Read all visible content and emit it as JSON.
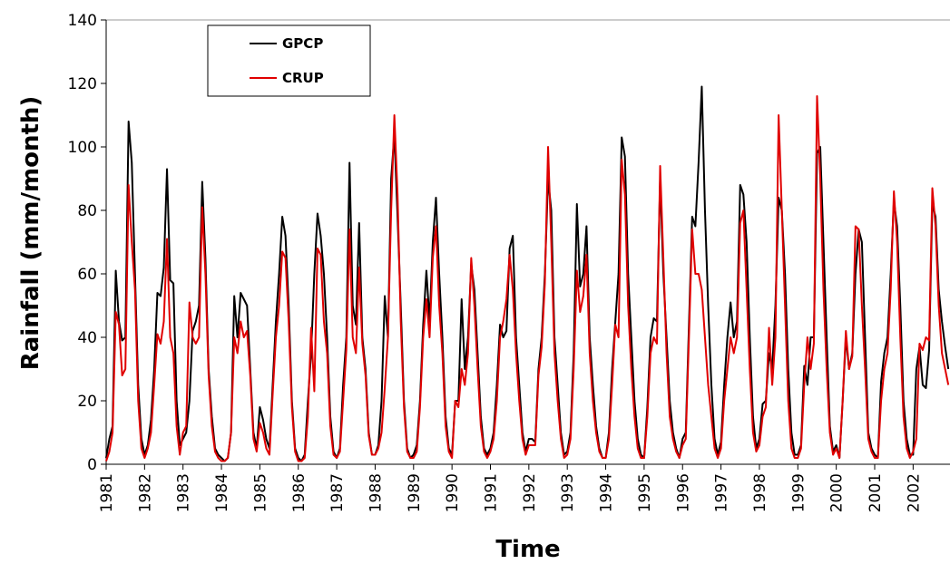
{
  "chart_data": {
    "type": "line",
    "title": "",
    "xlabel": "Time",
    "ylabel": "Rainfall (mm/month)",
    "ylim": [
      0,
      140
    ],
    "yticks": [
      "0",
      "20",
      "40",
      "60",
      "80",
      "100",
      "120",
      "140"
    ],
    "xlim": [
      "1981-01",
      "2002-12"
    ],
    "xticks": [
      "1981",
      "1982",
      "1983",
      "1984",
      "1985",
      "1986",
      "1987",
      "1988",
      "1989",
      "1990",
      "1991",
      "1992",
      "1993",
      "1994",
      "1995",
      "1996",
      "1997",
      "1998",
      "1999",
      "2000",
      "2001",
      "2002"
    ],
    "grid": false,
    "legend_position": "top-left",
    "series": [
      {
        "name": "GPCP",
        "color": "#000000",
        "values": [
          2,
          8,
          12,
          61,
          45,
          39,
          40,
          108,
          95,
          60,
          25,
          8,
          3,
          6,
          14,
          30,
          54,
          53,
          62,
          93,
          58,
          57,
          20,
          6,
          8,
          10,
          20,
          42,
          45,
          50,
          89,
          65,
          30,
          15,
          5,
          3,
          2,
          1,
          2,
          10,
          53,
          40,
          54,
          52,
          50,
          30,
          10,
          5,
          18,
          14,
          8,
          5,
          25,
          45,
          60,
          78,
          72,
          50,
          20,
          5,
          2,
          1,
          3,
          20,
          35,
          60,
          79,
          72,
          60,
          40,
          15,
          4,
          2,
          5,
          25,
          40,
          95,
          50,
          44,
          76,
          40,
          30,
          10,
          3,
          3,
          6,
          20,
          53,
          40,
          90,
          104,
          78,
          50,
          20,
          5,
          2,
          3,
          6,
          20,
          44,
          61,
          45,
          70,
          84,
          60,
          40,
          15,
          5,
          3,
          20,
          20,
          52,
          30,
          40,
          63,
          55,
          35,
          15,
          5,
          3,
          5,
          10,
          25,
          44,
          40,
          42,
          68,
          72,
          40,
          25,
          10,
          4,
          8,
          8,
          7,
          30,
          40,
          60,
          90,
          80,
          40,
          25,
          10,
          3,
          4,
          10,
          35,
          82,
          56,
          60,
          75,
          40,
          25,
          12,
          5,
          2,
          2,
          10,
          30,
          45,
          60,
          103,
          97,
          60,
          40,
          20,
          8,
          3,
          2,
          18,
          40,
          46,
          45,
          90,
          60,
          40,
          20,
          10,
          5,
          2,
          8,
          10,
          44,
          78,
          75,
          95,
          119,
          80,
          50,
          25,
          8,
          3,
          7,
          25,
          40,
          51,
          40,
          45,
          88,
          85,
          70,
          40,
          15,
          5,
          8,
          19,
          20,
          35,
          30,
          50,
          84,
          80,
          60,
          30,
          10,
          3,
          3,
          6,
          31,
          25,
          40,
          40,
          98,
          100,
          70,
          40,
          12,
          4,
          6,
          2,
          20,
          40,
          30,
          35,
          60,
          74,
          70,
          40,
          10,
          5,
          3,
          2,
          26,
          35,
          40,
          60,
          83,
          75,
          50,
          20,
          8,
          3,
          3,
          30,
          37,
          25,
          24,
          36,
          82,
          78,
          55,
          45,
          37,
          30
        ]
      },
      {
        "name": "CRUP",
        "color": "#e00000",
        "values": [
          1,
          4,
          10,
          48,
          44,
          28,
          30,
          88,
          70,
          55,
          20,
          5,
          2,
          5,
          10,
          25,
          41,
          38,
          45,
          71,
          40,
          35,
          12,
          3,
          10,
          12,
          51,
          40,
          38,
          40,
          81,
          60,
          28,
          12,
          4,
          2,
          1,
          1,
          2,
          10,
          40,
          35,
          45,
          40,
          42,
          28,
          8,
          4,
          13,
          10,
          5,
          3,
          22,
          40,
          50,
          67,
          65,
          45,
          18,
          4,
          1,
          1,
          2,
          15,
          43,
          23,
          68,
          66,
          45,
          35,
          12,
          3,
          2,
          4,
          20,
          36,
          74,
          40,
          35,
          62,
          38,
          28,
          9,
          3,
          3,
          5,
          10,
          24,
          40,
          80,
          110,
          85,
          45,
          18,
          4,
          2,
          2,
          4,
          18,
          40,
          52,
          40,
          65,
          75,
          50,
          35,
          12,
          4,
          2,
          20,
          18,
          30,
          25,
          35,
          65,
          50,
          30,
          12,
          4,
          2,
          4,
          8,
          20,
          40,
          45,
          52,
          66,
          55,
          35,
          20,
          8,
          3,
          6,
          6,
          6,
          28,
          37,
          57,
          100,
          70,
          35,
          20,
          8,
          2,
          3,
          8,
          30,
          61,
          48,
          53,
          66,
          35,
          20,
          10,
          4,
          2,
          2,
          8,
          25,
          44,
          40,
          96,
          85,
          50,
          30,
          15,
          5,
          2,
          2,
          15,
          35,
          40,
          38,
          94,
          65,
          35,
          15,
          8,
          4,
          2,
          6,
          8,
          40,
          74,
          60,
          60,
          55,
          40,
          25,
          15,
          5,
          2,
          5,
          20,
          30,
          40,
          35,
          40,
          76,
          80,
          55,
          30,
          10,
          4,
          6,
          15,
          18,
          43,
          25,
          40,
          110,
          80,
          50,
          20,
          5,
          2,
          2,
          5,
          25,
          40,
          30,
          38,
          116,
          90,
          55,
          30,
          10,
          3,
          5,
          2,
          20,
          42,
          30,
          34,
          75,
          74,
          50,
          30,
          8,
          4,
          2,
          2,
          20,
          30,
          35,
          55,
          86,
          70,
          40,
          15,
          5,
          2,
          4,
          8,
          38,
          36,
          40,
          39,
          87,
          75,
          50,
          35,
          30,
          25
        ]
      }
    ]
  }
}
